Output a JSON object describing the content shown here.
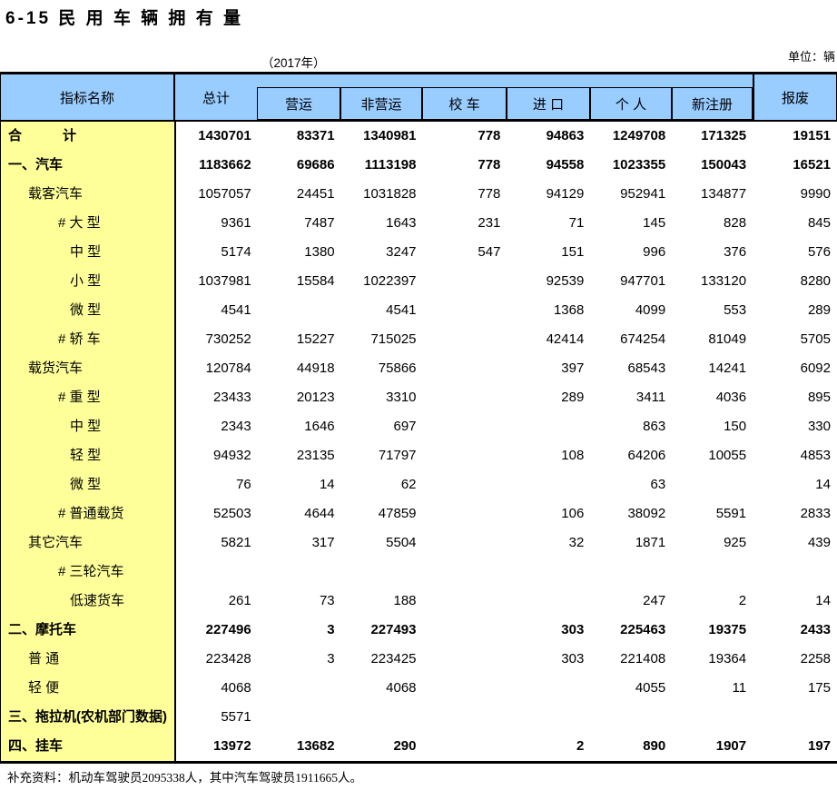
{
  "title": "6-15 民 用 车 辆 拥 有 量",
  "subtitle": "（2017年）",
  "unit_label": "单位：辆",
  "colors": {
    "header_bg": "#99CCFF",
    "label_bg": "#FFFF99",
    "border": "#000000"
  },
  "table": {
    "header": {
      "indicator": "指标名称",
      "total": "总计",
      "sub_columns": [
        "营运",
        "非营运",
        "校 车",
        "进 口",
        "个 人",
        "新注册"
      ],
      "scrap": "报废"
    },
    "rows": [
      {
        "label": "合　　　计",
        "indent": 0,
        "label_bold": true,
        "values_bold": true,
        "values": [
          "1430701",
          "83371",
          "1340981",
          "778",
          "94863",
          "1249708",
          "171325",
          "19151"
        ]
      },
      {
        "label": "一、汽车",
        "indent": 0,
        "label_bold": true,
        "values_bold": true,
        "values": [
          "1183662",
          "69686",
          "1113198",
          "778",
          "94558",
          "1023355",
          "150043",
          "16521"
        ]
      },
      {
        "label": "载客汽车",
        "indent": 1,
        "label_bold": false,
        "values_bold": false,
        "values": [
          "1057057",
          "24451",
          "1031828",
          "778",
          "94129",
          "952941",
          "134877",
          "9990"
        ]
      },
      {
        "label": "# 大 型",
        "indent": 2,
        "label_bold": false,
        "values_bold": false,
        "values": [
          "9361",
          "7487",
          "1643",
          "231",
          "71",
          "145",
          "828",
          "845"
        ]
      },
      {
        "label": "中 型",
        "indent": 3,
        "label_bold": false,
        "values_bold": false,
        "values": [
          "5174",
          "1380",
          "3247",
          "547",
          "151",
          "996",
          "376",
          "576"
        ]
      },
      {
        "label": "小 型",
        "indent": 3,
        "label_bold": false,
        "values_bold": false,
        "values": [
          "1037981",
          "15584",
          "1022397",
          "",
          "92539",
          "947701",
          "133120",
          "8280"
        ]
      },
      {
        "label": "微 型",
        "indent": 3,
        "label_bold": false,
        "values_bold": false,
        "values": [
          "4541",
          "",
          "4541",
          "",
          "1368",
          "4099",
          "553",
          "289"
        ]
      },
      {
        "label": "# 轿 车",
        "indent": 2,
        "label_bold": false,
        "values_bold": false,
        "values": [
          "730252",
          "15227",
          "715025",
          "",
          "42414",
          "674254",
          "81049",
          "5705"
        ]
      },
      {
        "label": "载货汽车",
        "indent": 1,
        "label_bold": false,
        "values_bold": false,
        "values": [
          "120784",
          "44918",
          "75866",
          "",
          "397",
          "68543",
          "14241",
          "6092"
        ]
      },
      {
        "label": "# 重 型",
        "indent": 2,
        "label_bold": false,
        "values_bold": false,
        "values": [
          "23433",
          "20123",
          "3310",
          "",
          "289",
          "3411",
          "4036",
          "895"
        ]
      },
      {
        "label": "中 型",
        "indent": 3,
        "label_bold": false,
        "values_bold": false,
        "values": [
          "2343",
          "1646",
          "697",
          "",
          "",
          "863",
          "150",
          "330"
        ]
      },
      {
        "label": "轻 型",
        "indent": 3,
        "label_bold": false,
        "values_bold": false,
        "values": [
          "94932",
          "23135",
          "71797",
          "",
          "108",
          "64206",
          "10055",
          "4853"
        ]
      },
      {
        "label": "微 型",
        "indent": 3,
        "label_bold": false,
        "values_bold": false,
        "values": [
          "76",
          "14",
          "62",
          "",
          "",
          "63",
          "",
          "14"
        ]
      },
      {
        "label": "# 普通载货",
        "indent": 2,
        "label_bold": false,
        "values_bold": false,
        "values": [
          "52503",
          "4644",
          "47859",
          "",
          "106",
          "38092",
          "5591",
          "2833"
        ]
      },
      {
        "label": "其它汽车",
        "indent": 1,
        "label_bold": false,
        "values_bold": false,
        "values": [
          "5821",
          "317",
          "5504",
          "",
          "32",
          "1871",
          "925",
          "439"
        ]
      },
      {
        "label": "# 三轮汽车",
        "indent": 2,
        "label_bold": false,
        "values_bold": false,
        "values": [
          "",
          "",
          "",
          "",
          "",
          "",
          "",
          ""
        ]
      },
      {
        "label": "低速货车",
        "indent": 3,
        "label_bold": false,
        "values_bold": false,
        "values": [
          "261",
          "73",
          "188",
          "",
          "",
          "247",
          "2",
          "14"
        ]
      },
      {
        "label": "二、摩托车",
        "indent": 0,
        "label_bold": true,
        "values_bold": true,
        "values": [
          "227496",
          "3",
          "227493",
          "",
          "303",
          "225463",
          "19375",
          "2433"
        ]
      },
      {
        "label": "普 通",
        "indent": 1,
        "label_bold": false,
        "values_bold": false,
        "values": [
          "223428",
          "3",
          "223425",
          "",
          "303",
          "221408",
          "19364",
          "2258"
        ]
      },
      {
        "label": "轻 便",
        "indent": 1,
        "label_bold": false,
        "values_bold": false,
        "values": [
          "4068",
          "",
          "4068",
          "",
          "",
          "4055",
          "11",
          "175"
        ]
      },
      {
        "label": "三、拖拉机(农机部门数据)",
        "indent": 0,
        "label_bold": true,
        "values_bold": false,
        "values": [
          "5571",
          "",
          "",
          "",
          "",
          "",
          "",
          ""
        ]
      },
      {
        "label": "四、挂车",
        "indent": 0,
        "label_bold": true,
        "values_bold": true,
        "values": [
          "13972",
          "13682",
          "290",
          "",
          "2",
          "890",
          "1907",
          "197"
        ]
      }
    ]
  },
  "footer": "补充资料：机动车驾驶员2095338人，其中汽车驾驶员1911665人。"
}
